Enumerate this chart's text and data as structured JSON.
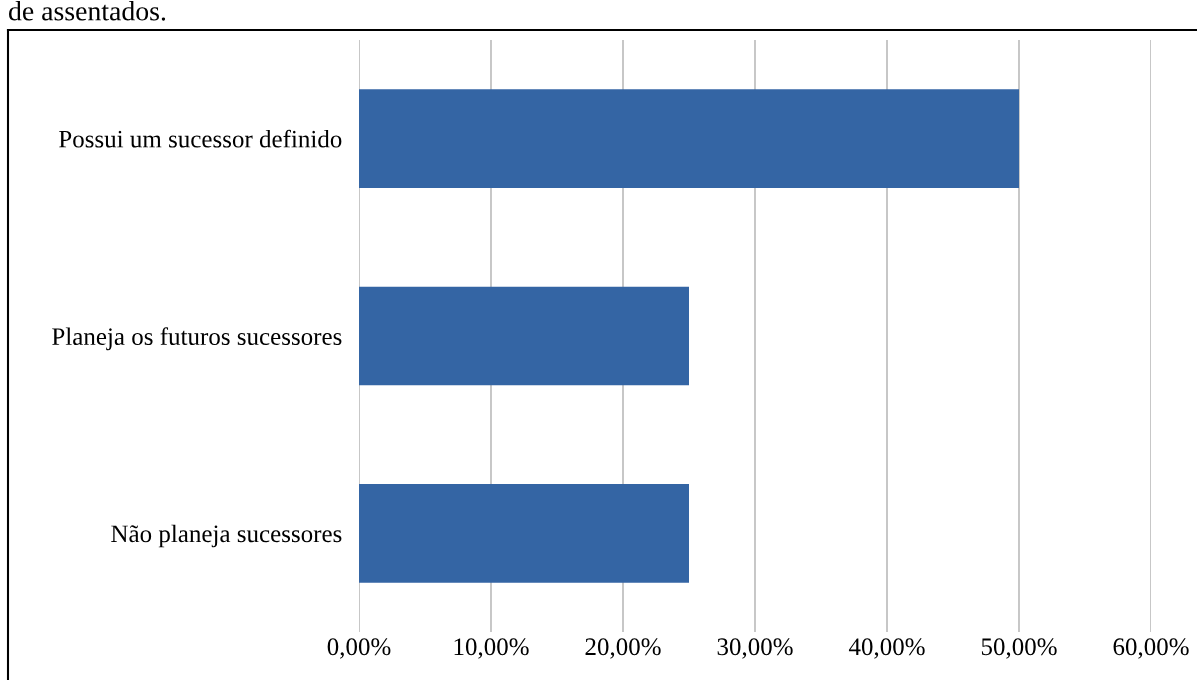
{
  "chart_data": {
    "type": "bar",
    "orientation": "horizontal",
    "annotations": [
      "de assentados."
    ],
    "categories": [
      "Possui um sucessor definido",
      "Planeja os futuros sucessores",
      "Não planeja sucessores"
    ],
    "values": [
      50,
      25,
      25
    ],
    "color": "#3465a4",
    "xlim": [
      0,
      60
    ],
    "xticks": [
      {
        "value": 0,
        "label": "0,00%"
      },
      {
        "value": 10,
        "label": "10,00%"
      },
      {
        "value": 20,
        "label": "20,00%"
      },
      {
        "value": 30,
        "label": "30,00%"
      },
      {
        "value": 40,
        "label": "40,00%"
      },
      {
        "value": 50,
        "label": "50,00%"
      },
      {
        "value": 60,
        "label": "60,00%"
      }
    ],
    "grid": "x"
  }
}
